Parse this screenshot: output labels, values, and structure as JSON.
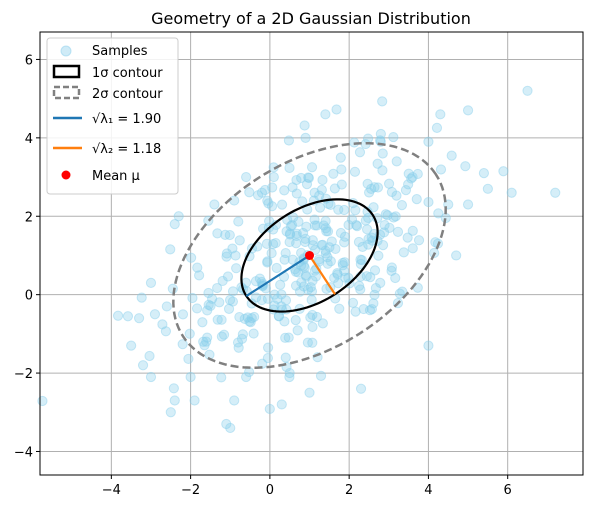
{
  "chart_data": {
    "type": "scatter",
    "title": "Geometry of a 2D Gaussian Distribution",
    "xlabel": "",
    "ylabel": "",
    "xlim": [
      -5.8,
      7.9
    ],
    "ylim": [
      -4.6,
      6.7
    ],
    "x_ticks": [
      -4,
      -2,
      0,
      2,
      4,
      6
    ],
    "y_ticks": [
      -4,
      -2,
      0,
      2,
      4,
      6
    ],
    "x_tick_labels": [
      "−4",
      "−2",
      "0",
      "2",
      "4",
      "6"
    ],
    "y_tick_labels": [
      "−4",
      "−2",
      "0",
      "2",
      "4",
      "6"
    ],
    "grid": true,
    "legend_position": "top-left",
    "colors": {
      "samples": "#87ceeb",
      "contour_1sigma": "#000000",
      "contour_2sigma": "#808080",
      "eigen1": "#1f77b4",
      "eigen2": "#ff7f0e",
      "mean": "#ff0000",
      "grid": "#b0b0b0"
    },
    "mean": [
      1.0,
      1.0
    ],
    "eigen": {
      "lambda1_sqrt": 1.9,
      "lambda2_sqrt": 1.18,
      "angle_deg": 33
    },
    "legend": [
      {
        "key": "samples",
        "label": "Samples"
      },
      {
        "key": "contour_1sigma",
        "label": "1σ contour"
      },
      {
        "key": "contour_2sigma",
        "label": "2σ contour"
      },
      {
        "key": "eigen1",
        "label": "√λ₁ = 1.90"
      },
      {
        "key": "eigen2",
        "label": "√λ₂ = 1.18"
      },
      {
        "key": "mean",
        "label": "Mean μ"
      }
    ],
    "sample_count": 400,
    "samples": [
      [
        6.5,
        5.2
      ],
      [
        5.0,
        4.7
      ],
      [
        4.3,
        4.6
      ],
      [
        1.4,
        4.6
      ],
      [
        2.8,
        4.1
      ],
      [
        0.9,
        4.0
      ],
      [
        7.2,
        2.6
      ],
      [
        6.1,
        2.6
      ],
      [
        5.4,
        3.1
      ],
      [
        5.5,
        2.7
      ],
      [
        5.0,
        2.3
      ],
      [
        4.7,
        1.0
      ],
      [
        4.0,
        -1.3
      ],
      [
        -3.5,
        -1.3
      ],
      [
        -3.2,
        -1.8
      ],
      [
        -3.0,
        -2.1
      ],
      [
        -2.4,
        -2.7
      ],
      [
        -2.5,
        -3.0
      ],
      [
        -1.1,
        -3.3
      ],
      [
        -1.0,
        -3.4
      ],
      [
        -0.6,
        -2.1
      ],
      [
        0.5,
        -2.0
      ],
      [
        2.3,
        -2.4
      ],
      [
        1.0,
        -2.5
      ],
      [
        -2.3,
        2.0
      ],
      [
        -2.4,
        1.8
      ],
      [
        -3.0,
        0.3
      ],
      [
        -3.3,
        -0.6
      ],
      [
        -2.9,
        -0.5
      ],
      [
        -2.6,
        -0.3
      ],
      [
        -1.9,
        -2.7
      ],
      [
        -0.9,
        -2.7
      ],
      [
        0.3,
        -2.8
      ],
      [
        -2.0,
        -2.1
      ],
      [
        4.0,
        3.9
      ],
      [
        4.5,
        2.3
      ],
      [
        3.6,
        3.0
      ],
      [
        3.2,
        3.4
      ],
      [
        -0.6,
        3.0
      ],
      [
        0.1,
        3.0
      ],
      [
        -0.9,
        2.4
      ],
      [
        -1.4,
        2.3
      ],
      [
        -0.2,
        2.6
      ]
    ]
  }
}
